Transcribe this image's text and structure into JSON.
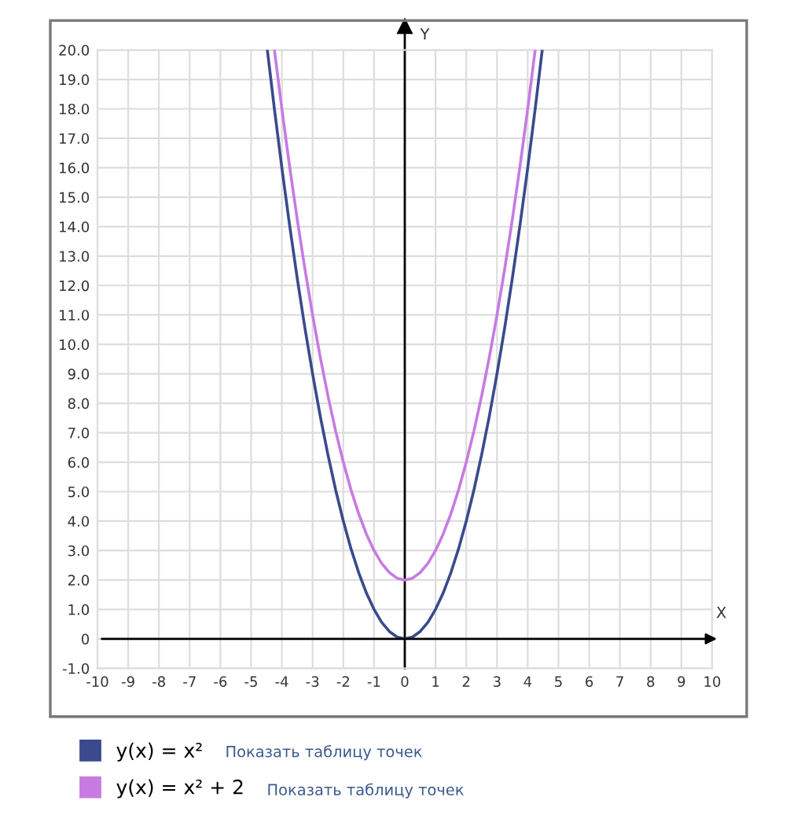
{
  "chart_data": {
    "type": "line",
    "xlabel": "X",
    "ylabel": "Y",
    "xlim": [
      -10,
      10
    ],
    "ylim": [
      -1,
      20
    ],
    "xticks": [
      -10,
      -9,
      -8,
      -7,
      -6,
      -5,
      -4,
      -3,
      -2,
      -1,
      0,
      1,
      2,
      3,
      4,
      5,
      6,
      7,
      8,
      9,
      10
    ],
    "yticks": [
      {
        "value": -1,
        "label": "-1.0"
      },
      {
        "value": 0,
        "label": "0"
      },
      {
        "value": 1,
        "label": "1.0"
      },
      {
        "value": 2,
        "label": "2.0"
      },
      {
        "value": 3,
        "label": "3.0"
      },
      {
        "value": 4,
        "label": "4.0"
      },
      {
        "value": 5,
        "label": "5.0"
      },
      {
        "value": 6,
        "label": "6.0"
      },
      {
        "value": 7,
        "label": "7.0"
      },
      {
        "value": 8,
        "label": "8.0"
      },
      {
        "value": 9,
        "label": "9.0"
      },
      {
        "value": 10,
        "label": "10.0"
      },
      {
        "value": 11,
        "label": "11.0"
      },
      {
        "value": 12,
        "label": "12.0"
      },
      {
        "value": 13,
        "label": "13.0"
      },
      {
        "value": 14,
        "label": "14.0"
      },
      {
        "value": 15,
        "label": "15.0"
      },
      {
        "value": 16,
        "label": "16.0"
      },
      {
        "value": 17,
        "label": "17.0"
      },
      {
        "value": 18,
        "label": "18.0"
      },
      {
        "value": 19,
        "label": "19.0"
      },
      {
        "value": 20,
        "label": "20.0"
      }
    ],
    "grid": true,
    "legend": "bottom left",
    "marker": "none",
    "line_style": "solid",
    "series": [
      {
        "name": "y(x) = x²",
        "color": "#3a4a8c",
        "x": [
          -4.47,
          -4.25,
          -4,
          -3.75,
          -3.5,
          -3.25,
          -3,
          -2.75,
          -2.5,
          -2.25,
          -2,
          -1.75,
          -1.5,
          -1.25,
          -1,
          -0.75,
          -0.5,
          -0.25,
          0,
          0.25,
          0.5,
          0.75,
          1,
          1.25,
          1.5,
          1.75,
          2,
          2.25,
          2.5,
          2.75,
          3,
          3.25,
          3.5,
          3.75,
          4,
          4.25,
          4.47
        ],
        "values": [
          19.98,
          18.06,
          16,
          14.06,
          12.25,
          10.56,
          9,
          7.56,
          6.25,
          5.06,
          4,
          3.06,
          2.25,
          1.56,
          1,
          0.56,
          0.25,
          0.06,
          0,
          0.06,
          0.25,
          0.56,
          1,
          1.56,
          2.25,
          3.06,
          4,
          5.06,
          6.25,
          7.56,
          9,
          10.56,
          12.25,
          14.06,
          16,
          18.06,
          19.98
        ]
      },
      {
        "name": "y(x) = x² + 2",
        "color": "#c77be0",
        "x": [
          -4.24,
          -4,
          -3.75,
          -3.5,
          -3.25,
          -3,
          -2.75,
          -2.5,
          -2.25,
          -2,
          -1.75,
          -1.5,
          -1.25,
          -1,
          -0.75,
          -0.5,
          -0.25,
          0,
          0.25,
          0.5,
          0.75,
          1,
          1.25,
          1.5,
          1.75,
          2,
          2.25,
          2.5,
          2.75,
          3,
          3.25,
          3.5,
          3.75,
          4,
          4.24
        ],
        "values": [
          19.98,
          18,
          16.06,
          14.25,
          12.56,
          11,
          9.56,
          8.25,
          7.06,
          6,
          5.06,
          4.25,
          3.56,
          3,
          2.56,
          2.25,
          2.06,
          2,
          2.06,
          2.25,
          2.56,
          3,
          3.56,
          4.25,
          5.06,
          6,
          7.06,
          8.25,
          9.56,
          11,
          12.56,
          14.25,
          16.06,
          18,
          19.98
        ]
      }
    ],
    "annotations": [
      "Показать таблицу точек",
      "Показать таблицу точек"
    ]
  }
}
